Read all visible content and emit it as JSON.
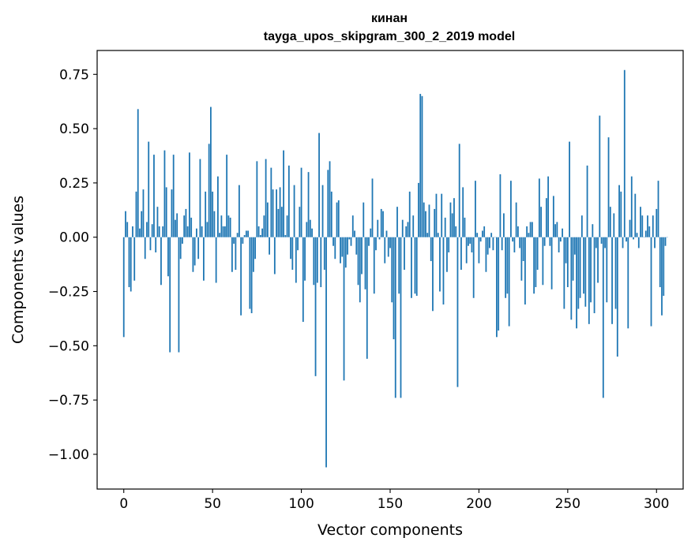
{
  "chart_data": {
    "type": "bar",
    "title": "кинан",
    "subtitle": "tayga_upos_skipgram_300_2_2019 model",
    "xlabel": "Vector components",
    "ylabel": "Components values",
    "xlim": [
      -15,
      315
    ],
    "ylim": [
      -1.16,
      0.86
    ],
    "xticks": [
      0,
      50,
      100,
      150,
      200,
      250,
      300
    ],
    "xtick_labels": [
      "0",
      "50",
      "100",
      "150",
      "200",
      "250",
      "300"
    ],
    "yticks": [
      0.75,
      0.5,
      0.25,
      0.0,
      -0.25,
      -0.5,
      -0.75,
      -1.0
    ],
    "ytick_labels": [
      "0.75",
      "0.50",
      "0.25",
      "0.00",
      "−0.25",
      "−0.50",
      "−0.75",
      "−1.00"
    ],
    "grid": false,
    "bar_color": "#1f77b4",
    "x_start": 0,
    "values": [
      -0.46,
      0.12,
      0.07,
      -0.23,
      -0.25,
      0.05,
      -0.2,
      0.21,
      0.59,
      0.04,
      0.12,
      0.22,
      -0.1,
      0.07,
      0.44,
      -0.06,
      0.06,
      0.38,
      -0.07,
      0.14,
      0.05,
      -0.22,
      0.05,
      0.4,
      0.23,
      -0.18,
      -0.53,
      0.22,
      0.38,
      0.08,
      0.11,
      -0.53,
      -0.1,
      -0.03,
      0.1,
      0.13,
      0.05,
      0.39,
      0.09,
      -0.16,
      -0.13,
      0.04,
      -0.1,
      0.36,
      0.05,
      -0.2,
      0.21,
      0.07,
      0.43,
      0.6,
      0.21,
      0.12,
      -0.21,
      0.28,
      0.02,
      0.1,
      0.05,
      0.05,
      0.38,
      0.1,
      0.09,
      -0.16,
      -0.03,
      -0.15,
      0.02,
      0.24,
      -0.36,
      -0.03,
      0.01,
      0.03,
      0.03,
      -0.33,
      -0.35,
      -0.16,
      -0.1,
      0.35,
      0.05,
      0.01,
      0.04,
      0.1,
      0.36,
      0.16,
      -0.08,
      0.32,
      0.22,
      -0.17,
      0.22,
      0.13,
      0.23,
      0.14,
      0.4,
      0.01,
      0.1,
      0.33,
      -0.1,
      -0.15,
      0.24,
      -0.21,
      -0.06,
      0.14,
      0.32,
      -0.39,
      -0.2,
      0.07,
      0.3,
      0.08,
      0.04,
      -0.22,
      -0.64,
      -0.21,
      0.48,
      -0.23,
      0.24,
      -0.15,
      -1.06,
      0.31,
      0.35,
      0.21,
      -0.04,
      -0.1,
      0.16,
      0.17,
      -0.12,
      -0.09,
      -0.66,
      -0.14,
      -0.08,
      -0.01,
      -0.04,
      0.1,
      0.03,
      -0.08,
      -0.22,
      -0.3,
      -0.17,
      0.16,
      -0.24,
      -0.56,
      -0.04,
      0.04,
      0.27,
      -0.26,
      -0.06,
      0.08,
      -0.01,
      0.13,
      0.12,
      -0.12,
      0.03,
      -0.09,
      -0.05,
      -0.3,
      -0.47,
      -0.74,
      0.14,
      -0.26,
      -0.74,
      0.08,
      -0.15,
      0.05,
      0.07,
      0.21,
      -0.28,
      0.1,
      -0.26,
      -0.27,
      0.25,
      0.66,
      0.65,
      0.16,
      0.12,
      0.02,
      0.15,
      -0.11,
      -0.34,
      0.13,
      0.2,
      0.02,
      -0.25,
      0.2,
      -0.31,
      0.09,
      -0.16,
      -0.07,
      0.16,
      0.11,
      0.18,
      0.05,
      -0.69,
      0.43,
      -0.15,
      0.23,
      0.09,
      -0.12,
      -0.04,
      -0.03,
      -0.07,
      -0.28,
      0.26,
      0.02,
      -0.12,
      -0.02,
      0.03,
      0.05,
      -0.16,
      -0.08,
      -0.05,
      0.02,
      -0.06,
      0.0,
      -0.46,
      -0.43,
      0.29,
      -0.06,
      0.11,
      -0.28,
      -0.26,
      -0.41,
      0.26,
      -0.02,
      -0.07,
      0.16,
      0.05,
      -0.05,
      -0.2,
      -0.11,
      -0.31,
      0.05,
      0.02,
      0.07,
      0.07,
      -0.26,
      -0.23,
      -0.15,
      0.27,
      0.14,
      -0.22,
      -0.04,
      0.18,
      0.28,
      -0.04,
      -0.24,
      0.19,
      0.06,
      0.07,
      -0.07,
      -0.02,
      0.04,
      -0.33,
      -0.12,
      -0.23,
      0.44,
      -0.38,
      -0.2,
      -0.08,
      -0.42,
      -0.33,
      -0.28,
      0.1,
      -0.26,
      -0.32,
      0.33,
      -0.4,
      -0.3,
      0.06,
      -0.35,
      -0.05,
      -0.21,
      0.56,
      -0.03,
      -0.74,
      -0.05,
      -0.3,
      0.46,
      0.14,
      -0.4,
      0.11,
      -0.33,
      -0.55,
      0.24,
      0.21,
      -0.05,
      0.77,
      -0.02,
      -0.42,
      0.08,
      0.28,
      -0.01,
      0.2,
      0.02,
      -0.05,
      0.14,
      0.1,
      0.0,
      0.03,
      0.1,
      0.05,
      -0.41,
      0.1,
      -0.05,
      0.13,
      0.26,
      -0.23,
      -0.36,
      -0.27,
      -0.04,
      0.0
    ]
  }
}
